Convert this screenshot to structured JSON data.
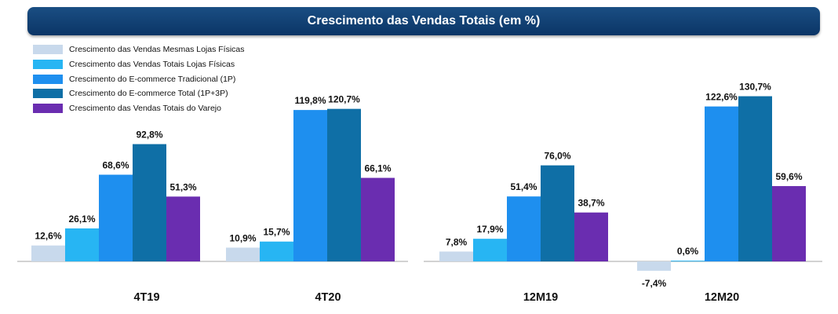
{
  "title": "Crescimento das Vendas Totais (em %)",
  "colors": [
    "#c8d9ec",
    "#27b5f3",
    "#1e8fef",
    "#0f6fa6",
    "#6a2db0"
  ],
  "chart_data": {
    "type": "bar",
    "title": "Crescimento das Vendas Totais (em %)",
    "categories": [
      "4T19",
      "4T20",
      "12M19",
      "12M20"
    ],
    "series": [
      {
        "name": "Crescimento das Vendas Mesmas Lojas Físicas",
        "values": [
          12.6,
          10.9,
          7.8,
          -7.4
        ]
      },
      {
        "name": "Crescimento das Vendas Totais Lojas Físicas",
        "values": [
          26.1,
          15.7,
          17.9,
          0.6
        ]
      },
      {
        "name": "Crescimento do E-commerce Tradicional (1P)",
        "values": [
          68.6,
          119.8,
          51.4,
          122.6
        ]
      },
      {
        "name": "Crescimento do E-commerce Total (1P+3P)",
        "values": [
          92.8,
          120.7,
          76.0,
          130.7
        ]
      },
      {
        "name": "Crescimento das Vendas Totais do Varejo",
        "values": [
          51.3,
          66.1,
          38.7,
          59.6
        ]
      }
    ],
    "value_labels": [
      [
        "12,6%",
        "10,9%",
        "7,8%",
        "-7,4%"
      ],
      [
        "26,1%",
        "15,7%",
        "17,9%",
        "0,6%"
      ],
      [
        "68,6%",
        "119,8%",
        "51,4%",
        "122,6%"
      ],
      [
        "92,8%",
        "120,7%",
        "76,0%",
        "130,7%"
      ],
      [
        "51,3%",
        "66,1%",
        "38,7%",
        "59,6%"
      ]
    ],
    "legend_position": "top-left",
    "grid": false
  }
}
